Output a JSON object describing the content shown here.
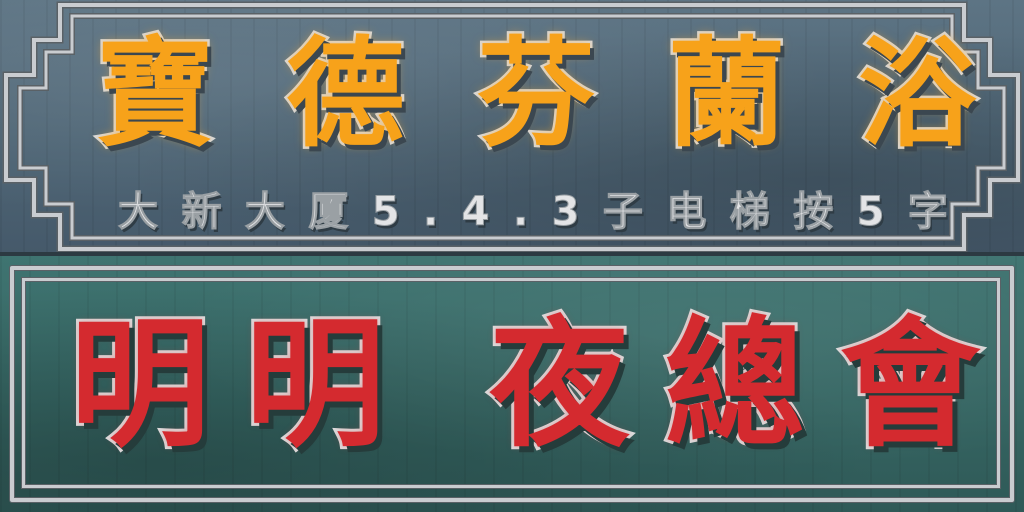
{
  "top_sign": {
    "title_chars": [
      "寶",
      "德",
      "芬",
      "蘭",
      "浴"
    ],
    "subtitle_chars": [
      "大",
      "新",
      "大",
      "厦",
      "5",
      ".",
      "4",
      ".",
      "3",
      "子",
      "电",
      "梯",
      "按",
      "5",
      "字"
    ],
    "text_color": "#f7a21a",
    "panel_color": "#52697a"
  },
  "bottom_sign": {
    "title_chars": [
      "明",
      "明",
      "夜",
      "總",
      "會"
    ],
    "text_color": "#d42a2f",
    "panel_color": "#386b69"
  },
  "frame_color": "#c9ccd0"
}
